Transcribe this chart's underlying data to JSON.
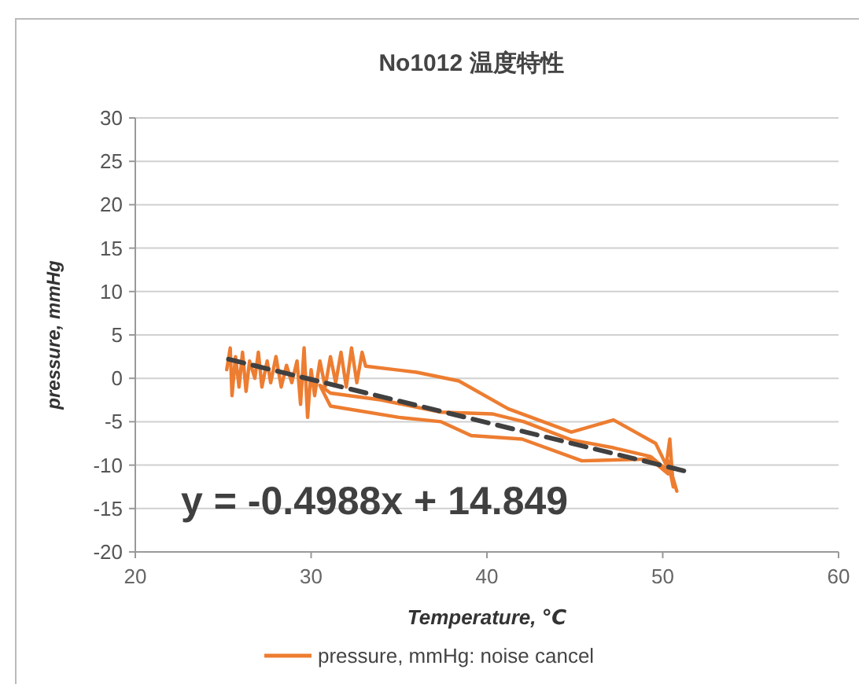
{
  "chart_data": {
    "type": "line",
    "title": "No1012 温度特性",
    "xlabel": "Temperature, ℃",
    "ylabel": "pressure, mmHg",
    "xlim": [
      20,
      60
    ],
    "xticks": [
      20,
      30,
      40,
      50,
      60
    ],
    "ylim": [
      -20,
      30
    ],
    "yticks": [
      -20,
      -15,
      -10,
      -5,
      0,
      5,
      10,
      15,
      20,
      25,
      30
    ],
    "grid": "y",
    "legend": "bottom",
    "marker": "none",
    "annotations": [
      "y = -0.4988x + 14.849"
    ],
    "series": [
      {
        "name": "pressure, mmHg: noise cancel",
        "color": "#ed7d31",
        "line_style": "solid",
        "x": [
          25.2,
          25.4,
          25.5,
          25.7,
          25.9,
          26.1,
          26.3,
          26.5,
          26.8,
          27,
          27.2,
          27.5,
          27.7,
          28,
          28.3,
          28.6,
          28.9,
          29.2,
          29.4,
          29.6,
          29.8,
          30,
          30.2,
          30.5,
          30.8,
          31.1,
          31.4,
          31.7,
          32,
          32.3,
          32.6,
          32.9,
          33.1,
          36,
          38.4,
          41.2,
          44.8,
          47.2,
          49.6,
          50.2,
          50.4,
          50.6,
          50.3,
          50.8,
          50.5,
          49.3,
          47.2,
          44.8,
          42.1,
          40.3,
          37.4,
          34,
          31.1,
          30.5,
          31.1,
          35,
          37.4,
          39.1,
          42,
          45.4,
          49.3,
          50.3
        ],
        "values": [
          1,
          3.5,
          -2,
          2.5,
          -1,
          3,
          -1.5,
          2,
          0,
          3,
          -1,
          2,
          -0.5,
          2.5,
          -1,
          1.5,
          -0.5,
          2,
          -3,
          3.5,
          -4.5,
          1,
          -2,
          2,
          -1,
          2.5,
          -0.5,
          3,
          -1,
          3.5,
          -0.5,
          3,
          1.4,
          0.7,
          -0.3,
          -3.5,
          -6.2,
          -4.8,
          -7.5,
          -10,
          -7,
          -12.5,
          -9.5,
          -13,
          -11,
          -9,
          -8,
          -7.1,
          -5,
          -4.1,
          -3.9,
          -2.5,
          -1.7,
          -0.8,
          -3.2,
          -4.5,
          -5,
          -6.6,
          -7,
          -9.5,
          -9.3,
          -11
        ]
      },
      {
        "type": "line",
        "color": "#404040",
        "line_style": "dashed",
        "x": [
          25.3,
          51.5
        ],
        "values": [
          2.2,
          -10.8
        ]
      }
    ]
  }
}
